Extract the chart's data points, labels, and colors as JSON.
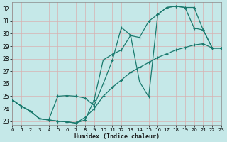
{
  "xlabel": "Humidex (Indice chaleur)",
  "xlim": [
    0,
    23
  ],
  "ylim": [
    22.7,
    32.5
  ],
  "xticks": [
    0,
    1,
    2,
    3,
    4,
    5,
    6,
    7,
    8,
    9,
    10,
    11,
    12,
    13,
    14,
    15,
    16,
    17,
    18,
    19,
    20,
    21,
    22,
    23
  ],
  "yticks": [
    23,
    24,
    25,
    26,
    27,
    28,
    29,
    30,
    31,
    32
  ],
  "bg_color": "#c5e8e8",
  "line_color": "#1a7a6e",
  "curve1_x": [
    0,
    1,
    2,
    3,
    4,
    5,
    6,
    7,
    8,
    9,
    10,
    11,
    12,
    13,
    14,
    15,
    16,
    17,
    18,
    19,
    20,
    21,
    22,
    23
  ],
  "curve1_y": [
    24.7,
    24.2,
    23.8,
    23.2,
    23.1,
    23.0,
    22.95,
    22.85,
    23.1,
    24.7,
    27.9,
    28.35,
    28.7,
    29.85,
    29.7,
    31.0,
    31.55,
    32.1,
    32.2,
    32.1,
    30.45,
    30.3,
    28.85,
    28.85
  ],
  "curve2_x": [
    0,
    1,
    2,
    3,
    4,
    5,
    6,
    7,
    8,
    9,
    10,
    11,
    12,
    13,
    14,
    15,
    16,
    17,
    18,
    19,
    20,
    21,
    22,
    23
  ],
  "curve2_y": [
    24.7,
    24.2,
    23.8,
    23.2,
    23.1,
    25.0,
    25.05,
    25.0,
    24.85,
    24.25,
    26.0,
    27.85,
    30.5,
    29.9,
    26.15,
    24.95,
    31.55,
    32.1,
    32.2,
    32.1,
    32.1,
    30.3,
    28.85,
    28.85
  ],
  "curve3_x": [
    0,
    1,
    2,
    3,
    4,
    5,
    6,
    7,
    8,
    9,
    10,
    11,
    12,
    13,
    14,
    15,
    16,
    17,
    18,
    19,
    20,
    21,
    22,
    23
  ],
  "curve3_y": [
    24.7,
    24.2,
    23.8,
    23.2,
    23.1,
    23.0,
    22.95,
    22.85,
    23.3,
    24.0,
    25.0,
    25.7,
    26.3,
    26.9,
    27.3,
    27.7,
    28.1,
    28.4,
    28.7,
    28.9,
    29.1,
    29.2,
    28.85,
    28.85
  ]
}
